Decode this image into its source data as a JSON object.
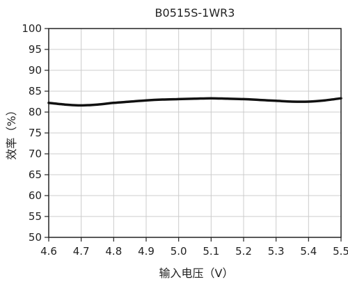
{
  "chart_data": {
    "type": "line",
    "title": "B0515S-1WR3",
    "xlabel": "输入电压（V）",
    "ylabel": "效率（%）",
    "xlim": [
      4.6,
      5.5
    ],
    "ylim": [
      50,
      100
    ],
    "xticks": [
      "4.6",
      "4.7",
      "4.8",
      "4.9",
      "5.0",
      "5.1",
      "5.2",
      "5.3",
      "5.4",
      "5.5"
    ],
    "yticks": [
      "50",
      "55",
      "60",
      "65",
      "70",
      "75",
      "80",
      "85",
      "90",
      "95",
      "100"
    ],
    "grid": true,
    "series": [
      {
        "x": [
          4.6,
          4.65,
          4.7,
          4.75,
          4.8,
          4.85,
          4.9,
          4.95,
          5.0,
          5.05,
          5.1,
          5.15,
          5.2,
          5.25,
          5.3,
          5.35,
          5.4,
          5.45,
          5.5
        ],
        "y": [
          82.2,
          81.8,
          81.6,
          81.8,
          82.2,
          82.5,
          82.8,
          83.0,
          83.1,
          83.2,
          83.3,
          83.2,
          83.1,
          82.9,
          82.7,
          82.5,
          82.5,
          82.8,
          83.3
        ]
      }
    ],
    "colors": {
      "line": "#111111",
      "grid": "#cccccc",
      "axis": "#222222"
    }
  }
}
